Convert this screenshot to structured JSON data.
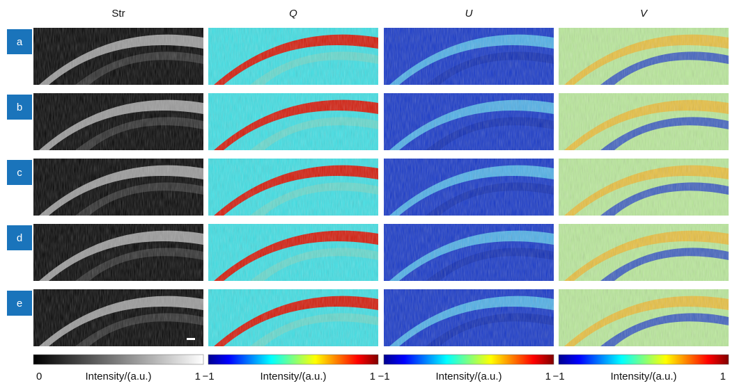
{
  "columns": [
    {
      "header": "Str",
      "colorbar": {
        "min_label": "0",
        "label": "Intensity/(a.u.)",
        "max_label": "1"
      }
    },
    {
      "header": "Q",
      "colorbar": {
        "min_label": "−1",
        "label": "Intensity/(a.u.)",
        "max_label": "1"
      }
    },
    {
      "header": "U",
      "colorbar": {
        "min_label": "−1",
        "label": "Intensity/(a.u.)",
        "max_label": "1"
      }
    },
    {
      "header": "V",
      "colorbar": {
        "min_label": "−1",
        "label": "Intensity/(a.u.)",
        "max_label": "1"
      }
    }
  ],
  "rows": [
    "a",
    "b",
    "c",
    "d",
    "e"
  ]
}
